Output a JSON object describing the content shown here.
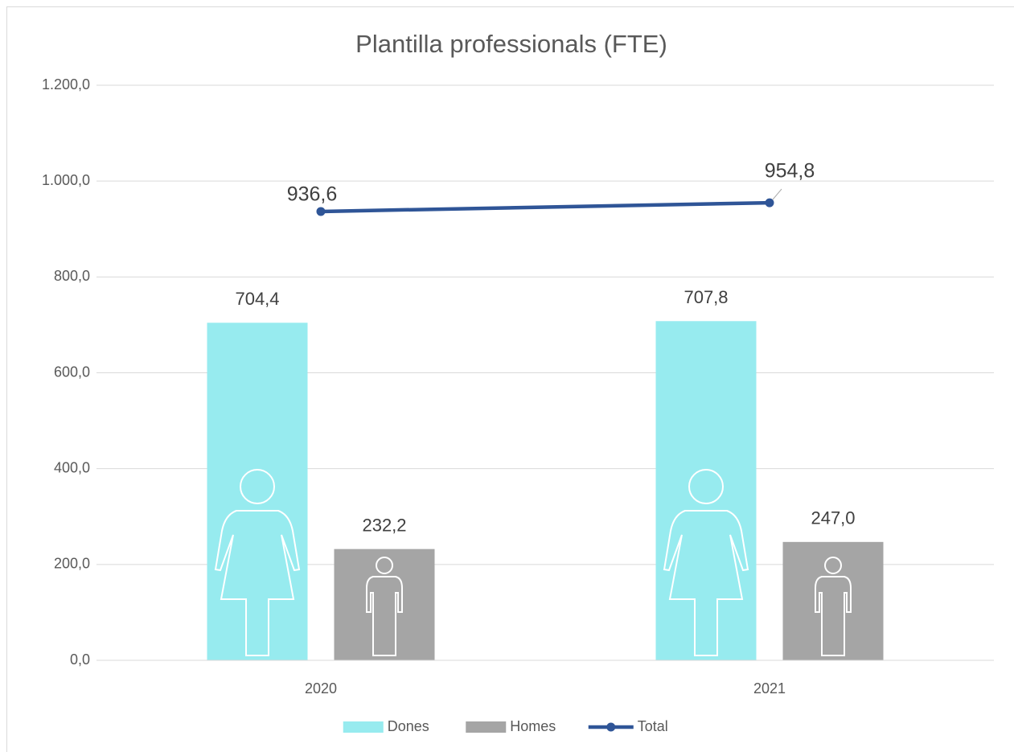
{
  "chart_data": {
    "type": "bar",
    "title": "Plantilla professionals (FTE)",
    "categories": [
      "2020",
      "2021"
    ],
    "series": [
      {
        "name": "Dones",
        "type": "bar",
        "color": "#97ebef",
        "values": [
          704.4,
          707.8
        ],
        "value_labels": [
          "704,4",
          "707,8"
        ]
      },
      {
        "name": "Homes",
        "type": "bar",
        "color": "#a5a5a5",
        "values": [
          232.2,
          247.0
        ],
        "value_labels": [
          "232,2",
          "247,0"
        ]
      },
      {
        "name": "Total",
        "type": "line",
        "color": "#2f5597",
        "values": [
          936.6,
          954.8
        ],
        "value_labels": [
          "936,6",
          "954,8"
        ]
      }
    ],
    "ylim": [
      0,
      1200
    ],
    "yticks": [
      {
        "value": 0,
        "label": "0,0"
      },
      {
        "value": 200,
        "label": "200,0"
      },
      {
        "value": 400,
        "label": "400,0"
      },
      {
        "value": 600,
        "label": "600,0"
      },
      {
        "value": 800,
        "label": "800,0"
      },
      {
        "value": 1000,
        "label": "1.000,0"
      },
      {
        "value": 1200,
        "label": "1.200,0"
      }
    ],
    "grid": true,
    "legend": "bottom"
  }
}
